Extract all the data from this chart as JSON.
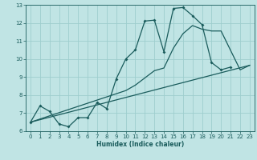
{
  "xlabel": "Humidex (Indice chaleur)",
  "bg_color": "#c0e4e4",
  "grid_color": "#9ecece",
  "line_color": "#1a5c5c",
  "xlim": [
    -0.5,
    23.5
  ],
  "ylim": [
    6,
    13
  ],
  "xticks": [
    0,
    1,
    2,
    3,
    4,
    5,
    6,
    7,
    8,
    9,
    10,
    11,
    12,
    13,
    14,
    15,
    16,
    17,
    18,
    19,
    20,
    21,
    22,
    23
  ],
  "yticks": [
    6,
    7,
    8,
    9,
    10,
    11,
    12,
    13
  ],
  "line1_x": [
    0,
    1,
    2,
    3,
    4,
    5,
    6,
    7,
    8,
    9,
    10,
    11,
    12,
    13,
    14,
    15,
    16,
    17,
    18,
    19,
    20,
    21
  ],
  "line1_y": [
    6.5,
    7.4,
    7.1,
    6.4,
    6.25,
    6.75,
    6.75,
    7.6,
    7.25,
    8.9,
    10.0,
    10.5,
    12.1,
    12.15,
    10.4,
    12.8,
    12.85,
    12.4,
    11.9,
    9.8,
    9.4,
    9.55
  ],
  "line2_x": [
    0,
    23
  ],
  "line2_y": [
    6.5,
    9.65
  ],
  "line3_x": [
    0,
    10,
    11,
    13,
    14,
    15,
    16,
    17,
    18,
    19,
    20,
    22,
    23
  ],
  "line3_y": [
    6.5,
    8.25,
    8.55,
    9.35,
    9.5,
    10.6,
    11.4,
    11.85,
    11.65,
    11.55,
    11.55,
    9.4,
    9.65
  ]
}
